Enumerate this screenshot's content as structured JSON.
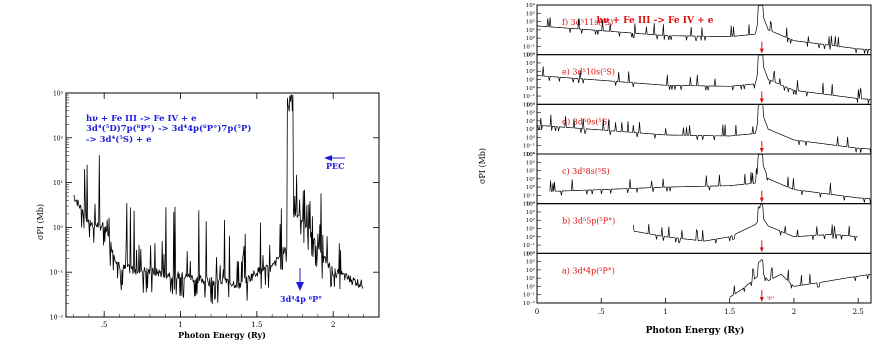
{
  "chart_data": [
    {
      "type": "line",
      "xlabel": "Photon Energy (Ry)",
      "ylabel": "σPI (Mb)",
      "x_ticks": [
        ".5",
        "1",
        "1.5",
        "2"
      ],
      "y_ticks": [
        "10^-2",
        "10^-1",
        "10^0",
        "10^1",
        "10^2",
        "10^3"
      ],
      "xlim": [
        0.25,
        2.3
      ],
      "ylim_log10": [
        -2,
        3
      ],
      "annotation_lines": [
        "hν + Fe III -> Fe IV + e",
        "3d⁴(⁵D)7p(⁶P°) -> 3d⁴4p(⁶P°)7p(⁵P)",
        "-> 3d⁴(⁵S) + e"
      ],
      "pec_label": "PEC",
      "arrow_label": "3d⁴4p ⁶P°",
      "colors": {
        "annotation": "#1d1ddb",
        "curve": "#000000"
      },
      "series": [
        {
          "x": [
            0.3,
            0.4,
            0.5,
            0.6,
            0.7,
            0.8,
            0.9,
            1.0,
            1.1,
            1.2,
            1.3,
            1.4,
            1.5,
            1.6,
            1.7,
            1.72,
            1.74,
            1.8,
            1.9,
            2.0,
            2.1,
            2.2
          ],
          "y": [
            5,
            1.2,
            1.0,
            0.12,
            0.11,
            0.1,
            0.09,
            0.08,
            0.07,
            0.06,
            0.06,
            0.05,
            0.1,
            0.12,
            0.4,
            1000,
            2.0,
            1.5,
            0.3,
            0.1,
            0.07,
            0.05
          ]
        }
      ]
    },
    {
      "type": "line",
      "title": "hν + Fe III -> Fe IV + e",
      "xlabel": "Photon Energy (Ry)",
      "ylabel": "σPI (Mb)",
      "x_ticks": [
        "0",
        ".5",
        "1",
        "1.5",
        "2",
        "2.5"
      ],
      "xlim": [
        0,
        2.6
      ],
      "y_tick_labels": [
        "10⁻²",
        "10⁻¹",
        "10⁰",
        "10¹",
        "10²",
        "10³",
        "10⁴"
      ],
      "arrow_x": 1.75,
      "arrow_color": "#e01010",
      "panels": [
        {
          "label": "f) 3d⁵11s(⁵S)",
          "ylim_log10": [
            -2,
            4
          ],
          "base": 10,
          "x": [
            0,
            0.5,
            1.0,
            1.5,
            1.7,
            1.74,
            1.8,
            2.0,
            2.5,
            2.6
          ],
          "y": [
            30,
            8,
            2,
            1.5,
            3,
            3000,
            10,
            0.5,
            0.05,
            0.04
          ]
        },
        {
          "label": "e) 3d⁵10s(⁵S)",
          "ylim_log10": [
            -2,
            4
          ],
          "base": 10,
          "x": [
            0,
            0.5,
            1.0,
            1.5,
            1.7,
            1.74,
            1.8,
            2.0,
            2.5,
            2.6
          ],
          "y": [
            30,
            8,
            2,
            1.5,
            3,
            3000,
            10,
            0.5,
            0.05,
            0.04
          ]
        },
        {
          "label": "d) 3d⁵9s(⁵S)",
          "ylim_log10": [
            -2,
            4
          ],
          "base": 10,
          "x": [
            0,
            0.5,
            1.0,
            1.5,
            1.7,
            1.74,
            1.8,
            2.0,
            2.5,
            2.6
          ],
          "y": [
            30,
            8,
            2,
            1.5,
            3,
            3000,
            10,
            0.5,
            0.05,
            0.04
          ]
        },
        {
          "label": "c) 3d⁵8s(⁵S)",
          "ylim_log10": [
            -2,
            4
          ],
          "base": 10,
          "x": [
            0.1,
            0.5,
            1.0,
            1.5,
            1.7,
            1.74,
            1.8,
            2.0,
            2.5,
            2.6
          ],
          "y": [
            0.3,
            0.5,
            1,
            1.5,
            3,
            3000,
            10,
            0.5,
            0.05,
            0.04
          ]
        },
        {
          "label": "b) 3d⁵5p(⁵P°)",
          "ylim_log10": [
            -2,
            4
          ],
          "base": 10,
          "x": [
            0.75,
            1.0,
            1.3,
            1.5,
            1.7,
            1.75,
            1.8,
            2.0,
            2.3,
            2.5
          ],
          "y": [
            5,
            1,
            0.3,
            1,
            30,
            300,
            20,
            1,
            2,
            1
          ]
        },
        {
          "label": "a) 3d⁴4p(⁵P°)",
          "ylim_log10": [
            -2,
            4
          ],
          "base": 10,
          "x": [
            1.5,
            1.6,
            1.7,
            1.75,
            1.8,
            1.9,
            2.0,
            2.2,
            2.4,
            2.6
          ],
          "y": [
            0.05,
            0.5,
            10,
            50,
            5,
            30,
            1,
            3,
            10,
            30
          ]
        }
      ],
      "arrow_labels": {
        "a": "⁵P°"
      }
    }
  ]
}
